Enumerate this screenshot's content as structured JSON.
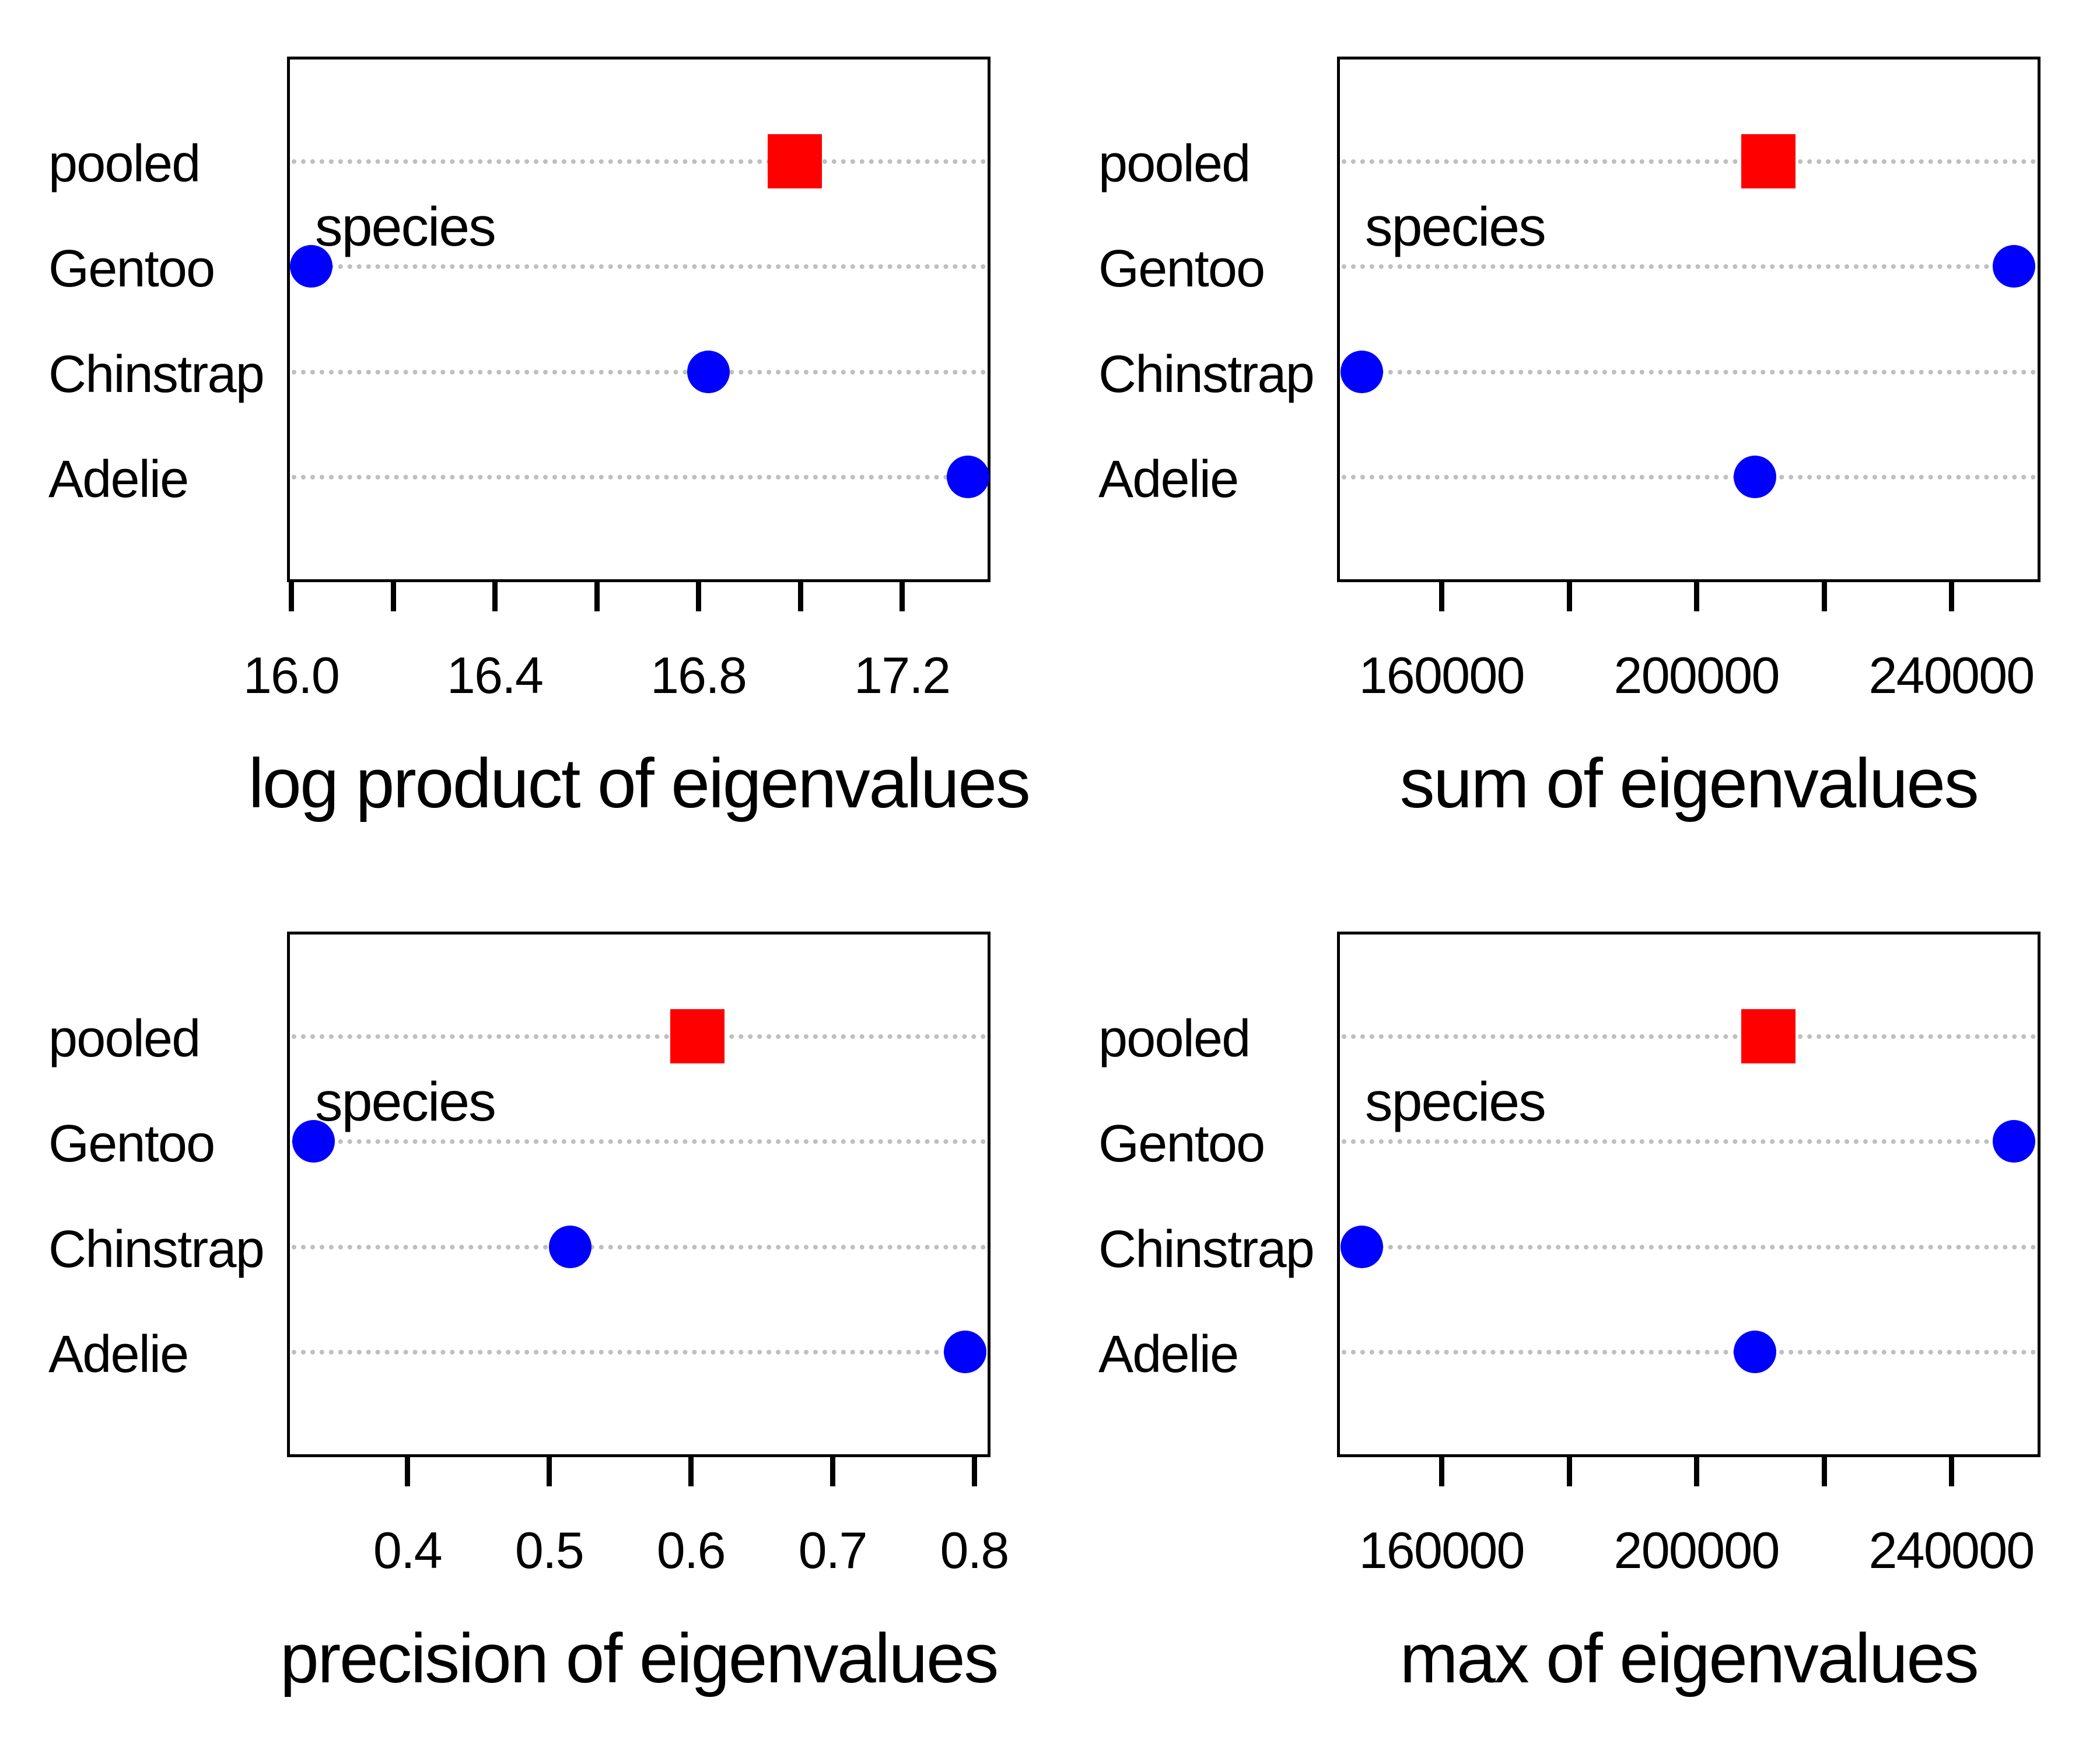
{
  "figure": {
    "background": "#FFFFFF",
    "text_color": "#000000",
    "gridline_color": "#BFBFBF",
    "gridline_style": "dotted",
    "categories_top_to_bottom": [
      "pooled",
      "Gentoo",
      "Chinstrap",
      "Adelie"
    ],
    "group_label": "species",
    "markers": {
      "pooled": {
        "shape": "square",
        "color": "#FF0000"
      },
      "species": {
        "shape": "circle",
        "color": "#0000FF"
      }
    }
  },
  "chart_data": [
    {
      "type": "scatter",
      "panel": "top-left",
      "xlabel": "log product of eigenvalues",
      "group_label": "species",
      "categories": [
        "pooled",
        "Gentoo",
        "Chinstrap",
        "Adelie"
      ],
      "values": [
        16.99,
        16.04,
        16.82,
        17.33
      ],
      "marker_shapes": [
        "square",
        "circle",
        "circle",
        "circle"
      ],
      "marker_colors": [
        "#FF0000",
        "#0000FF",
        "#0000FF",
        "#0000FF"
      ],
      "xlim": [
        15.992,
        17.374
      ],
      "grid": "horizontal dotted",
      "xticks": [
        {
          "v": 16.0,
          "label": "16.0"
        },
        {
          "v": 16.2,
          "label": ""
        },
        {
          "v": 16.4,
          "label": "16.4"
        },
        {
          "v": 16.6,
          "label": ""
        },
        {
          "v": 16.8,
          "label": "16.8"
        },
        {
          "v": 17.0,
          "label": ""
        },
        {
          "v": 17.2,
          "label": "17.2"
        }
      ]
    },
    {
      "type": "scatter",
      "panel": "top-right",
      "xlabel": "sum of eigenvalues",
      "group_label": "species",
      "categories": [
        "pooled",
        "Gentoo",
        "Chinstrap",
        "Adelie"
      ],
      "values": [
        211300,
        249900,
        147500,
        209200
      ],
      "marker_shapes": [
        "square",
        "circle",
        "circle",
        "circle"
      ],
      "marker_colors": [
        "#FF0000",
        "#0000FF",
        "#0000FF",
        "#0000FF"
      ],
      "xlim": [
        143600,
        254000
      ],
      "grid": "horizontal dotted",
      "xticks": [
        {
          "v": 160000,
          "label": "160000"
        },
        {
          "v": 180000,
          "label": ""
        },
        {
          "v": 200000,
          "label": "200000"
        },
        {
          "v": 220000,
          "label": ""
        },
        {
          "v": 240000,
          "label": "240000"
        }
      ]
    },
    {
      "type": "scatter",
      "panel": "bottom-left",
      "xlabel": "precision of eigenvalues",
      "group_label": "species",
      "categories": [
        "pooled",
        "Gentoo",
        "Chinstrap",
        "Adelie"
      ],
      "values": [
        0.605,
        0.334,
        0.515,
        0.794
      ],
      "marker_shapes": [
        "square",
        "circle",
        "circle",
        "circle"
      ],
      "marker_colors": [
        "#FF0000",
        "#0000FF",
        "#0000FF",
        "#0000FF"
      ],
      "xlim": [
        0.315,
        0.8115
      ],
      "grid": "horizontal dotted",
      "xticks": [
        {
          "v": 0.4,
          "label": "0.4"
        },
        {
          "v": 0.5,
          "label": "0.5"
        },
        {
          "v": 0.6,
          "label": "0.6"
        },
        {
          "v": 0.7,
          "label": "0.7"
        },
        {
          "v": 0.8,
          "label": "0.8"
        }
      ]
    },
    {
      "type": "scatter",
      "panel": "bottom-right",
      "xlabel": "max of eigenvalues",
      "group_label": "species",
      "categories": [
        "pooled",
        "Gentoo",
        "Chinstrap",
        "Adelie"
      ],
      "values": [
        211300,
        249900,
        147500,
        209200
      ],
      "marker_shapes": [
        "square",
        "circle",
        "circle",
        "circle"
      ],
      "marker_colors": [
        "#FF0000",
        "#0000FF",
        "#0000FF",
        "#0000FF"
      ],
      "xlim": [
        143600,
        254000
      ],
      "grid": "horizontal dotted",
      "xticks": [
        {
          "v": 160000,
          "label": "160000"
        },
        {
          "v": 180000,
          "label": ""
        },
        {
          "v": 200000,
          "label": "200000"
        },
        {
          "v": 220000,
          "label": ""
        },
        {
          "v": 240000,
          "label": "240000"
        }
      ]
    }
  ]
}
